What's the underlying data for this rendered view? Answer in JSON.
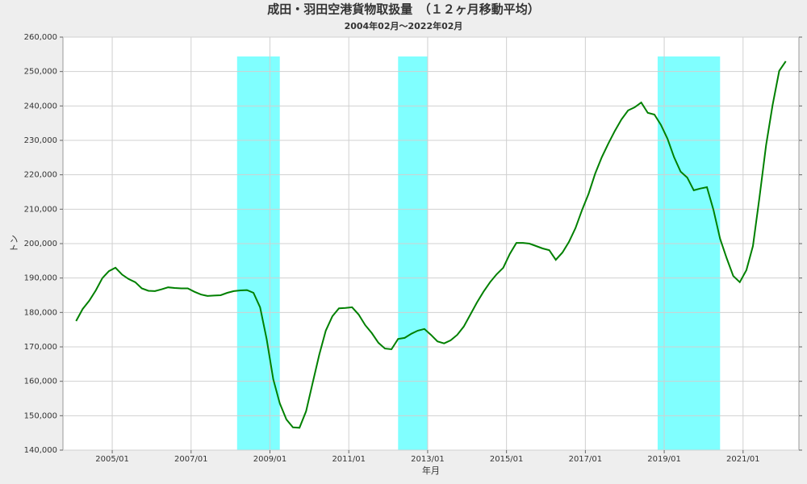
{
  "chart_data": {
    "type": "line",
    "title": "成田・羽田空港貨物取扱量　（１２ヶ月移動平均）",
    "subtitle": "2004年02月～2022年02月",
    "x_label": "年月",
    "y_label": "トン",
    "x": [
      "2004/02",
      "2004/04",
      "2004/06",
      "2004/08",
      "2004/10",
      "2004/12",
      "2005/02",
      "2005/04",
      "2005/06",
      "2005/08",
      "2005/10",
      "2005/12",
      "2006/02",
      "2006/04",
      "2006/06",
      "2006/08",
      "2006/10",
      "2006/12",
      "2007/02",
      "2007/04",
      "2007/06",
      "2007/08",
      "2007/10",
      "2007/12",
      "2008/02",
      "2008/04",
      "2008/06",
      "2008/08",
      "2008/10",
      "2008/12",
      "2009/02",
      "2009/04",
      "2009/06",
      "2009/08",
      "2009/10",
      "2009/12",
      "2010/02",
      "2010/04",
      "2010/06",
      "2010/08",
      "2010/10",
      "2010/12",
      "2011/02",
      "2011/04",
      "2011/06",
      "2011/08",
      "2011/10",
      "2011/12",
      "2012/02",
      "2012/04",
      "2012/06",
      "2012/08",
      "2012/10",
      "2012/12",
      "2013/02",
      "2013/04",
      "2013/06",
      "2013/08",
      "2013/10",
      "2013/12",
      "2014/02",
      "2014/04",
      "2014/06",
      "2014/08",
      "2014/10",
      "2014/12",
      "2015/02",
      "2015/04",
      "2015/06",
      "2015/08",
      "2015/10",
      "2015/12",
      "2016/02",
      "2016/04",
      "2016/06",
      "2016/08",
      "2016/10",
      "2016/12",
      "2017/02",
      "2017/04",
      "2017/06",
      "2017/08",
      "2017/10",
      "2017/12",
      "2018/02",
      "2018/04",
      "2018/06",
      "2018/08",
      "2018/10",
      "2018/12",
      "2019/02",
      "2019/04",
      "2019/06",
      "2019/08",
      "2019/10",
      "2019/12",
      "2020/02",
      "2020/04",
      "2020/06",
      "2020/08",
      "2020/10",
      "2020/12",
      "2021/02",
      "2021/04",
      "2021/06",
      "2021/08",
      "2021/10",
      "2021/12",
      "2022/02"
    ],
    "series": [
      {
        "color": "#008000",
        "values": [
          177500,
          181000,
          183400,
          186400,
          190000,
          192000,
          193000,
          191000,
          189700,
          188800,
          187000,
          186300,
          186200,
          186700,
          187300,
          187100,
          187000,
          187000,
          186000,
          185200,
          184800,
          184900,
          185000,
          185700,
          186200,
          186400,
          186500,
          185700,
          181500,
          172300,
          160600,
          153600,
          148900,
          146600,
          146500,
          151300,
          159500,
          167700,
          174700,
          178900,
          181200,
          181300,
          181500,
          179400,
          176300,
          174000,
          171200,
          169500,
          169300,
          172300,
          172600,
          173800,
          174700,
          175200,
          173500,
          171600,
          171000,
          171900,
          173500,
          175900,
          179400,
          182900,
          186000,
          188800,
          191100,
          193000,
          197000,
          200200,
          200200,
          200000,
          199300,
          198600,
          198100,
          195300,
          197400,
          200500,
          204500,
          209800,
          214500,
          220400,
          225100,
          229100,
          232800,
          236100,
          238700,
          239600,
          241000,
          238000,
          237500,
          234500,
          230500,
          225100,
          220900,
          219200,
          215500,
          216000,
          216400,
          209800,
          201400,
          195800,
          190600,
          188800,
          192300,
          199300,
          213400,
          228600,
          240300,
          250200,
          253000
        ]
      }
    ],
    "shaded_periods": [
      {
        "start": "2008/03",
        "end": "2009/04"
      },
      {
        "start": "2012/04",
        "end": "2013/01"
      },
      {
        "start": "2018/11",
        "end": "2020/06"
      }
    ],
    "shade_color": "#80ffff",
    "xlim": [
      "2003/10",
      "2022/06"
    ],
    "xticks": [
      "2005/01",
      "2007/01",
      "2009/01",
      "2011/01",
      "2013/01",
      "2015/01",
      "2017/01",
      "2019/01",
      "2021/01"
    ],
    "ylim": [
      140000,
      260000
    ],
    "yticks": [
      {
        "value": 140000,
        "label": "140,000"
      },
      {
        "value": 150000,
        "label": "150,000"
      },
      {
        "value": 160000,
        "label": "160,000"
      },
      {
        "value": 170000,
        "label": "170,000"
      },
      {
        "value": 180000,
        "label": "180,000"
      },
      {
        "value": 190000,
        "label": "190,000"
      },
      {
        "value": 200000,
        "label": "200,000"
      },
      {
        "value": 210000,
        "label": "210,000"
      },
      {
        "value": 220000,
        "label": "220,000"
      },
      {
        "value": 230000,
        "label": "230,000"
      },
      {
        "value": 240000,
        "label": "240,000"
      },
      {
        "value": 250000,
        "label": "250,000"
      },
      {
        "value": 260000,
        "label": "260,000"
      }
    ],
    "grid": true
  }
}
